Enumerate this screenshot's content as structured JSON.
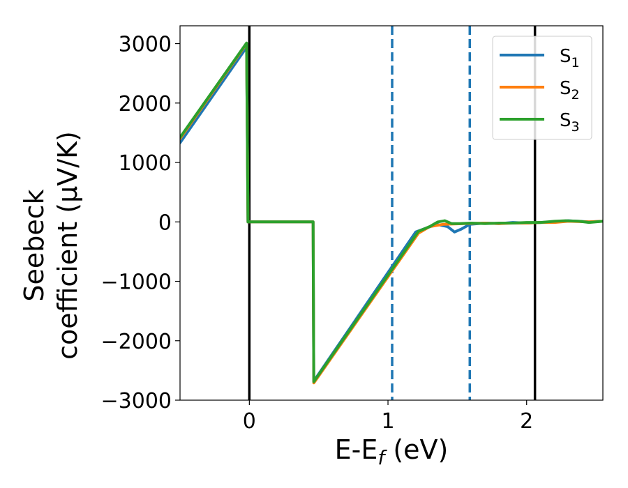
{
  "chart_data": {
    "type": "line",
    "xlabel": "E-E",
    "xlabel_sub": "f",
    "xlabel_unit": " (eV)",
    "ylabel_line1": "Seebeck",
    "ylabel_line2": "coefficient  (μV/K)",
    "xlim": [
      -0.5,
      2.55
    ],
    "ylim": [
      -3000,
      3300
    ],
    "x_ticks": [
      0,
      1,
      2
    ],
    "x_tick_labels": [
      "0",
      "1",
      "2"
    ],
    "y_ticks": [
      3000,
      2000,
      1000,
      0,
      -1000,
      -2000,
      -3000
    ],
    "y_tick_labels": [
      "3000",
      "2000",
      "1000",
      "0",
      "−1000",
      "−2000",
      "−3000"
    ],
    "vertical_lines": [
      {
        "x": 0.0,
        "style": "solid",
        "color": "#000000"
      },
      {
        "x": 1.03,
        "style": "dashed",
        "color": "#1f77b4"
      },
      {
        "x": 1.59,
        "style": "dashed",
        "color": "#1f77b4"
      },
      {
        "x": 2.06,
        "style": "solid",
        "color": "#000000"
      }
    ],
    "legend_position": "top-right",
    "series": [
      {
        "name": "S",
        "name_sub": "1",
        "color": "#1f77b4",
        "points": [
          [
            -0.5,
            1330
          ],
          [
            -0.02,
            2940
          ],
          [
            -0.01,
            0
          ],
          [
            0.46,
            0
          ],
          [
            0.465,
            -2680
          ],
          [
            1.2,
            -170
          ],
          [
            1.35,
            -40
          ],
          [
            1.43,
            -80
          ],
          [
            1.48,
            -170
          ],
          [
            1.53,
            -120
          ],
          [
            1.59,
            -40
          ],
          [
            1.7,
            -20
          ],
          [
            1.8,
            -30
          ],
          [
            1.9,
            -10
          ],
          [
            2.0,
            -20
          ],
          [
            2.1,
            -10
          ],
          [
            2.2,
            0
          ],
          [
            2.3,
            20
          ],
          [
            2.45,
            0
          ],
          [
            2.55,
            10
          ]
        ]
      },
      {
        "name": "S",
        "name_sub": "2",
        "color": "#ff7f0e",
        "points": [
          [
            -0.5,
            1400
          ],
          [
            -0.02,
            3000
          ],
          [
            -0.01,
            0
          ],
          [
            0.46,
            0
          ],
          [
            0.465,
            -2710
          ],
          [
            1.22,
            -190
          ],
          [
            1.3,
            -80
          ],
          [
            1.4,
            -40
          ],
          [
            1.55,
            -30
          ],
          [
            1.7,
            -20
          ],
          [
            1.8,
            -30
          ],
          [
            1.9,
            -20
          ],
          [
            2.0,
            -20
          ],
          [
            2.1,
            -10
          ],
          [
            2.2,
            -10
          ],
          [
            2.3,
            10
          ],
          [
            2.45,
            0
          ],
          [
            2.55,
            10
          ]
        ]
      },
      {
        "name": "S",
        "name_sub": "3",
        "color": "#2ca02c",
        "points": [
          [
            -0.5,
            1420
          ],
          [
            -0.02,
            3010
          ],
          [
            -0.01,
            0
          ],
          [
            0.46,
            0
          ],
          [
            0.465,
            -2690
          ],
          [
            1.22,
            -160
          ],
          [
            1.3,
            -80
          ],
          [
            1.36,
            0
          ],
          [
            1.41,
            20
          ],
          [
            1.46,
            -30
          ],
          [
            1.52,
            -30
          ],
          [
            1.6,
            -20
          ],
          [
            1.7,
            -30
          ],
          [
            1.8,
            -20
          ],
          [
            1.9,
            -20
          ],
          [
            2.0,
            -10
          ],
          [
            2.1,
            -10
          ],
          [
            2.2,
            10
          ],
          [
            2.28,
            20
          ],
          [
            2.38,
            10
          ],
          [
            2.45,
            -10
          ],
          [
            2.55,
            10
          ]
        ]
      }
    ]
  }
}
